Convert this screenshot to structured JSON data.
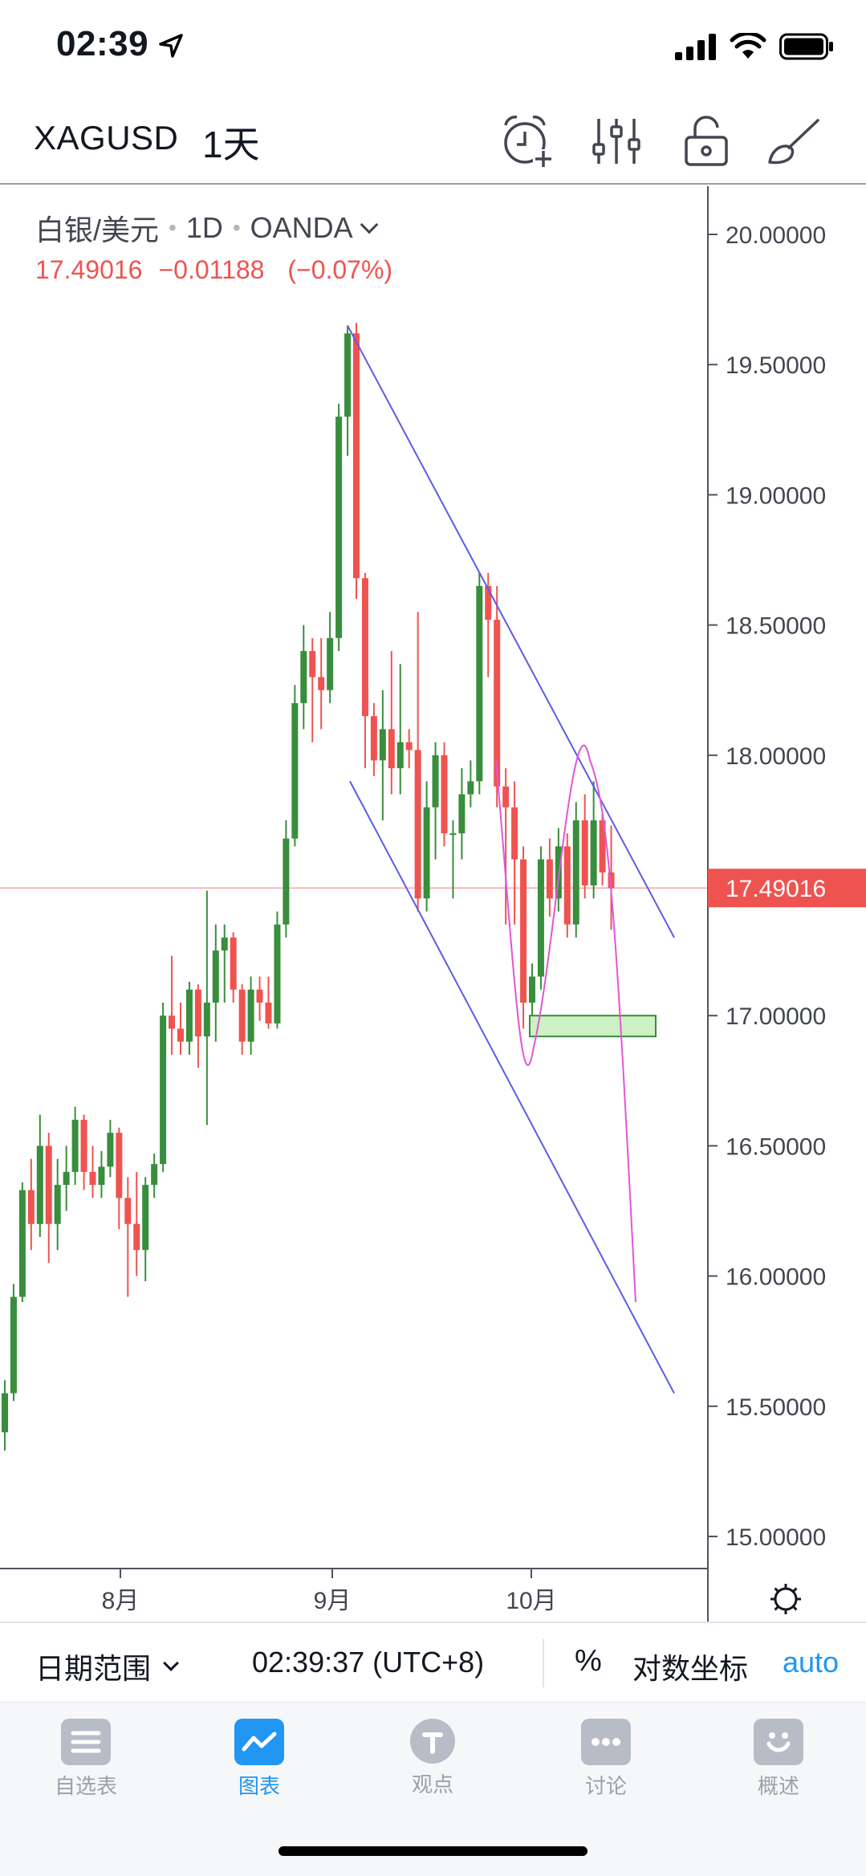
{
  "status_bar": {
    "time": "02:39",
    "icons": [
      "location-arrow-icon",
      "signal-icon",
      "wifi-icon",
      "battery-icon"
    ]
  },
  "header": {
    "symbol": "XAGUSD",
    "interval": "1天",
    "icons": [
      "alarm-add-icon",
      "indicators-icon",
      "lock-icon",
      "drawing-brush-icon"
    ]
  },
  "legend": {
    "pair": "白银/美元",
    "timeframe": "1D",
    "broker": "OANDA",
    "last": "17.49016",
    "change": "−0.01188",
    "change_pct": "(−0.07%)"
  },
  "colors": {
    "up": "#388e3c",
    "down": "#ef5350",
    "trendline": "#5b5be6",
    "projection": "#e056d8",
    "accent": "#2196f3"
  },
  "chart_data": {
    "type": "candlestick",
    "price_axis_labels": [
      "20.00000",
      "19.50000",
      "19.00000",
      "18.50000",
      "18.00000",
      "17.50000",
      "17.00000",
      "16.50000",
      "16.00000",
      "15.50000",
      "15.00000"
    ],
    "time_axis_labels": [
      "8月",
      "9月",
      "10月"
    ],
    "current_price_label": "17.49016",
    "ylim": [
      14.95,
      20.25
    ],
    "candles": [
      [
        15.4,
        15.6,
        15.33,
        15.55
      ],
      [
        15.55,
        15.97,
        15.52,
        15.92
      ],
      [
        15.92,
        16.36,
        15.9,
        16.33
      ],
      [
        16.33,
        16.45,
        16.1,
        16.2
      ],
      [
        16.2,
        16.62,
        16.15,
        16.5
      ],
      [
        16.5,
        16.55,
        16.05,
        16.2
      ],
      [
        16.2,
        16.45,
        16.1,
        16.35
      ],
      [
        16.35,
        16.5,
        16.25,
        16.4
      ],
      [
        16.4,
        16.65,
        16.35,
        16.6
      ],
      [
        16.6,
        16.62,
        16.33,
        16.4
      ],
      [
        16.4,
        16.5,
        16.3,
        16.35
      ],
      [
        16.35,
        16.48,
        16.3,
        16.42
      ],
      [
        16.42,
        16.6,
        16.38,
        16.55
      ],
      [
        16.55,
        16.57,
        16.18,
        16.3
      ],
      [
        16.3,
        16.38,
        15.92,
        16.2
      ],
      [
        16.2,
        16.4,
        16.0,
        16.1
      ],
      [
        16.1,
        16.38,
        15.98,
        16.35
      ],
      [
        16.35,
        16.47,
        16.3,
        16.43
      ],
      [
        16.43,
        17.05,
        16.4,
        17.0
      ],
      [
        17.0,
        17.23,
        16.85,
        16.95
      ],
      [
        16.95,
        17.05,
        16.85,
        16.9
      ],
      [
        16.9,
        17.13,
        16.85,
        17.1
      ],
      [
        17.1,
        17.12,
        16.8,
        16.92
      ],
      [
        16.92,
        17.48,
        16.58,
        17.05
      ],
      [
        17.05,
        17.35,
        16.9,
        17.25
      ],
      [
        17.25,
        17.35,
        17.05,
        17.3
      ],
      [
        17.3,
        17.32,
        17.05,
        17.1
      ],
      [
        17.1,
        17.12,
        16.85,
        16.9
      ],
      [
        16.9,
        17.15,
        16.85,
        17.1
      ],
      [
        17.1,
        17.15,
        16.98,
        17.05
      ],
      [
        17.05,
        17.15,
        16.95,
        16.97
      ],
      [
        16.97,
        17.4,
        16.95,
        17.35
      ],
      [
        17.35,
        17.75,
        17.3,
        17.68
      ],
      [
        17.68,
        18.27,
        17.65,
        18.2
      ],
      [
        18.2,
        18.5,
        18.1,
        18.4
      ],
      [
        18.4,
        18.45,
        18.05,
        18.3
      ],
      [
        18.3,
        18.45,
        18.1,
        18.25
      ],
      [
        18.25,
        18.55,
        18.2,
        18.45
      ],
      [
        18.45,
        19.35,
        18.4,
        19.3
      ],
      [
        19.3,
        19.65,
        19.15,
        19.62
      ],
      [
        19.62,
        19.66,
        18.6,
        18.68
      ],
      [
        18.68,
        18.7,
        17.95,
        18.15
      ],
      [
        18.15,
        18.2,
        17.92,
        17.98
      ],
      [
        17.98,
        18.25,
        17.75,
        18.1
      ],
      [
        18.1,
        18.4,
        17.85,
        17.95
      ],
      [
        17.95,
        18.35,
        17.85,
        18.05
      ],
      [
        18.05,
        18.1,
        17.95,
        18.02
      ],
      [
        18.02,
        18.55,
        17.4,
        17.45
      ],
      [
        17.45,
        17.9,
        17.4,
        17.8
      ],
      [
        17.8,
        18.05,
        17.6,
        18.0
      ],
      [
        18.0,
        18.05,
        17.65,
        17.7
      ],
      [
        17.7,
        17.75,
        17.45,
        17.7
      ],
      [
        17.7,
        17.95,
        17.6,
        17.85
      ],
      [
        17.85,
        17.98,
        17.8,
        17.9
      ],
      [
        17.9,
        18.7,
        17.85,
        18.65
      ],
      [
        18.65,
        18.7,
        18.3,
        18.52
      ],
      [
        18.52,
        18.65,
        17.8,
        17.88
      ],
      [
        17.88,
        17.95,
        17.35,
        17.8
      ],
      [
        17.8,
        17.9,
        17.35,
        17.6
      ],
      [
        17.6,
        17.65,
        16.95,
        17.05
      ],
      [
        17.05,
        17.2,
        16.95,
        17.15
      ],
      [
        17.15,
        17.65,
        17.1,
        17.6
      ],
      [
        17.6,
        17.68,
        17.38,
        17.45
      ],
      [
        17.45,
        17.72,
        17.4,
        17.65
      ],
      [
        17.65,
        17.7,
        17.3,
        17.35
      ],
      [
        17.35,
        17.82,
        17.3,
        17.75
      ],
      [
        17.75,
        17.85,
        17.45,
        17.5
      ],
      [
        17.5,
        17.9,
        17.45,
        17.75
      ],
      [
        17.75,
        17.78,
        17.5,
        17.55
      ],
      [
        17.55,
        17.73,
        17.33,
        17.49
      ]
    ],
    "drawings": {
      "channel_upper": [
        [
          0,
          19.65
        ],
        [
          1,
          17.3
        ]
      ],
      "channel_lower": [
        [
          0,
          17.9
        ],
        [
          1,
          15.55
        ]
      ],
      "demand_zone": [
        16.92,
        17.0
      ],
      "projection_path": "curve down to ~16.9, up to ~17.98, then down toward ~15.9"
    }
  },
  "bottom_bar": {
    "date_range": "日期范围",
    "time": "02:39:37 (UTC+8)",
    "percent": "%",
    "log_scale": "对数坐标",
    "auto": "auto"
  },
  "tabs": [
    {
      "label": "自选表",
      "icon": "watchlist-icon",
      "active": false
    },
    {
      "label": "图表",
      "icon": "chart-icon",
      "active": true
    },
    {
      "label": "观点",
      "icon": "ideas-lightbulb-icon",
      "active": false
    },
    {
      "label": "讨论",
      "icon": "chat-bubble-icon",
      "active": false
    },
    {
      "label": "概述",
      "icon": "smile-profile-icon",
      "active": false
    }
  ]
}
